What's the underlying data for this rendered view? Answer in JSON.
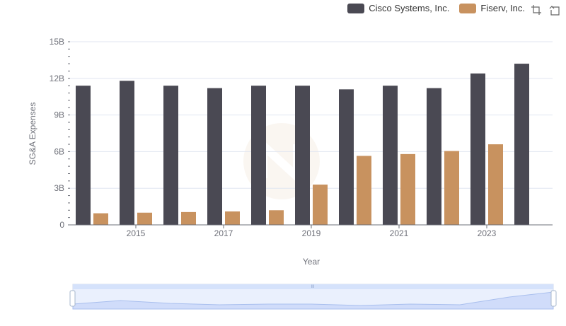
{
  "chart_data": {
    "type": "bar",
    "categories": [
      "2014",
      "2015",
      "2016",
      "2017",
      "2018",
      "2019",
      "2020",
      "2021",
      "2022",
      "2023",
      "2024"
    ],
    "series": [
      {
        "name": "Cisco Systems, Inc.",
        "color": "#4a4953",
        "values": [
          11.4,
          11.8,
          11.4,
          11.2,
          11.4,
          11.4,
          11.1,
          11.4,
          11.2,
          12.4,
          13.2
        ]
      },
      {
        "name": "Fiserv, Inc.",
        "color": "#c8925f",
        "values": [
          0.95,
          1.0,
          1.05,
          1.1,
          1.2,
          3.3,
          5.65,
          5.8,
          6.05,
          6.6,
          null
        ]
      }
    ],
    "x_tick_labels": [
      "2015",
      "2017",
      "2019",
      "2021",
      "2023"
    ],
    "y_tick_labels": [
      "0",
      "3B",
      "6B",
      "9B",
      "12B",
      "15B"
    ],
    "ylim": [
      0,
      15
    ],
    "xlabel": "Year",
    "ylabel": "SG&A Expenses",
    "legend_position": "top-right",
    "grid": true
  },
  "toolbox": {
    "zoom_icon": "zoom-icon",
    "restore_icon": "restore-icon"
  },
  "datazoom": {
    "range_start": 0,
    "range_end": 1,
    "handle_label": "III"
  }
}
